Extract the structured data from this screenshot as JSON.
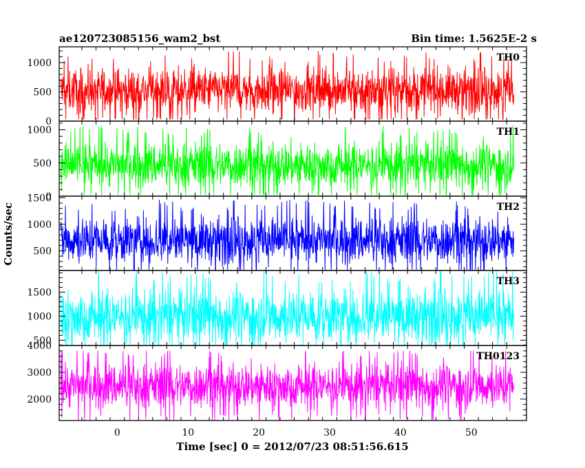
{
  "chart_data": {
    "type": "line",
    "title": "ae120723085156_wam2_bst",
    "subtitle": "Bin time: 1.5625E-2 s",
    "xlabel": "Time [sec] 0 = 2012/07/23 08:51:56.615",
    "ylabel": "Counts/sec",
    "xlim": [
      -8.2,
      57.8
    ],
    "x_range_data": [
      -8,
      56
    ],
    "x_ticks": [
      0,
      10,
      20,
      30,
      40,
      50
    ],
    "x_tick_labels": [
      "0",
      "10",
      "20",
      "30",
      "40",
      "50"
    ],
    "grid": false,
    "panels": [
      {
        "name": "TH0",
        "color": "#ff0000",
        "ylim": [
          0,
          1270
        ],
        "y_ticks": [
          0,
          500,
          1000
        ],
        "y_tick_labels": [
          "0",
          "500",
          "1000"
        ],
        "mean": 530,
        "sigma": 190,
        "min": 30,
        "max": 1270
      },
      {
        "name": "TH1",
        "color": "#00ff00",
        "ylim": [
          0,
          1130
        ],
        "y_ticks": [
          0,
          500,
          1000
        ],
        "y_tick_labels": [
          "0",
          "500",
          "1000"
        ],
        "mean": 470,
        "sigma": 170,
        "min": 20,
        "max": 1130
      },
      {
        "name": "TH2",
        "color": "#0000ff",
        "ylim": [
          130,
          1530
        ],
        "y_ticks": [
          500,
          1000,
          1500
        ],
        "y_tick_labels": [
          "500",
          "1000",
          "1500"
        ],
        "mean": 700,
        "sigma": 220,
        "min": 140,
        "max": 1500
      },
      {
        "name": "TH3",
        "color": "#00ffff",
        "ylim": [
          390,
          1950
        ],
        "y_ticks": [
          500,
          1000,
          1500
        ],
        "y_tick_labels": [
          "500",
          "1000",
          "1500"
        ],
        "mean": 1000,
        "sigma": 280,
        "min": 400,
        "max": 1950
      },
      {
        "name": "TH0123",
        "color": "#ff00ff",
        "ylim": [
          1200,
          4000
        ],
        "y_ticks": [
          2000,
          3000,
          4000
        ],
        "y_tick_labels": [
          "2000",
          "3000",
          "4000"
        ],
        "mean": 2500,
        "sigma": 420,
        "min": 1220,
        "max": 3800
      }
    ]
  }
}
